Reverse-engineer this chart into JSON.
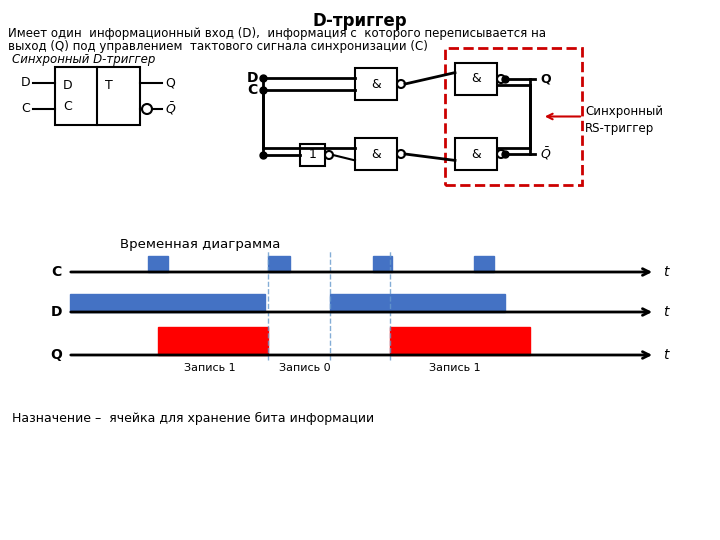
{
  "title": "D-триггер",
  "subtitle_line1": "Имеет один  информационный вход (D),  информация с  которого переписывается на",
  "subtitle_line2": "выход (Q) под управлением  тактового сигнала синхронизации (C)",
  "left_label": "Синхронный D-триггер",
  "rs_label_line1": "Синхронный",
  "rs_label_line2": "RS-триггер",
  "timing_label": "Временная диаграмма",
  "footer": "Назначение –  ячейка для хранение бита информации",
  "blue_color": "#4472C4",
  "red_color": "#FF0000",
  "black": "#000000",
  "white": "#FFFFFF",
  "dashed_red": "#CC0000",
  "bg_color": "#FFFFFF"
}
